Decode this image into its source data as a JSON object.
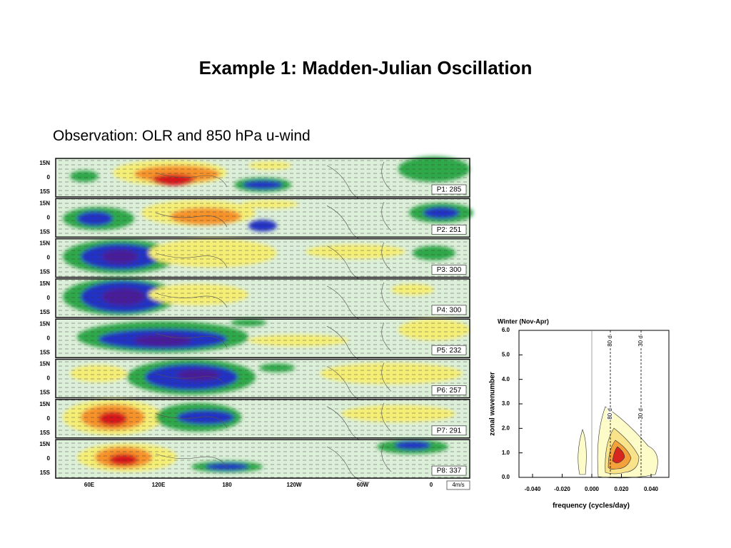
{
  "title": "Example 1: Madden-Julian Oscillation",
  "subtitle": "Observation: OLR and 850 hPa u-wind",
  "map": {
    "panels": [
      "P1: 285",
      "P2: 251",
      "P3: 300",
      "P4: 300",
      "P5: 232",
      "P6: 257",
      "P7: 291",
      "P8: 337"
    ],
    "lat_labels": [
      "15N",
      "0",
      "15S"
    ],
    "lon_labels": [
      "60E",
      "120E",
      "180",
      "120W",
      "60W",
      "0"
    ],
    "scale_label": "4m/s"
  },
  "spectrum": {
    "title": "Winter (Nov-Apr)",
    "x_label": "frequency (cycles/day)",
    "y_label": "zonal wavenumber",
    "xticks": [
      "-0.040",
      "-0.020",
      "0.000",
      "0.020",
      "0.040"
    ],
    "yticks": [
      "0.0",
      "1.0",
      "2.0",
      "3.0",
      "4.0",
      "5.0",
      "6.0"
    ],
    "period_labels": [
      "80 d",
      "30 d"
    ]
  }
}
